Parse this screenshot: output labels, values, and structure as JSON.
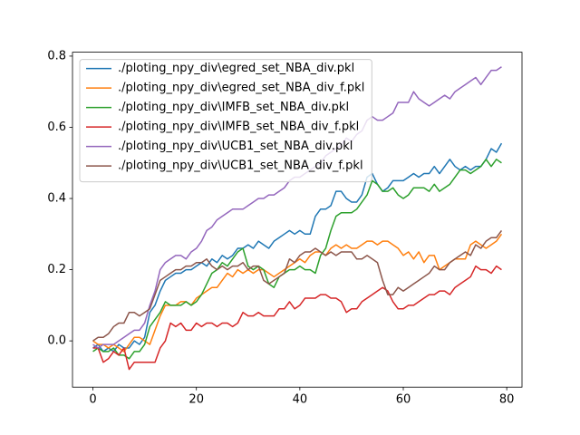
{
  "chart_data": {
    "type": "line",
    "x": [
      0,
      1,
      2,
      3,
      4,
      5,
      6,
      7,
      8,
      9,
      10,
      11,
      12,
      13,
      14,
      15,
      16,
      17,
      18,
      19,
      20,
      21,
      22,
      23,
      24,
      25,
      26,
      27,
      28,
      29,
      30,
      31,
      32,
      33,
      34,
      35,
      36,
      37,
      38,
      39,
      40,
      41,
      42,
      43,
      44,
      45,
      46,
      47,
      48,
      49,
      50,
      51,
      52,
      53,
      54,
      55,
      56,
      57,
      58,
      59,
      60,
      61,
      62,
      63,
      64,
      65,
      66,
      67,
      68,
      69,
      70,
      71,
      72,
      73,
      74,
      75,
      76,
      77,
      78,
      79
    ],
    "series": [
      {
        "name": "./ploting_npy_div\\egred_set_NBA_div.pkl",
        "color": "#1f77b4",
        "values": [
          -0.02,
          -0.01,
          -0.03,
          -0.02,
          -0.03,
          -0.01,
          -0.02,
          -0.02,
          0.0,
          -0.01,
          0.01,
          0.08,
          0.1,
          0.14,
          0.17,
          0.18,
          0.19,
          0.19,
          0.2,
          0.2,
          0.21,
          0.22,
          0.21,
          0.23,
          0.22,
          0.24,
          0.23,
          0.24,
          0.26,
          0.26,
          0.27,
          0.26,
          0.28,
          0.27,
          0.26,
          0.28,
          0.29,
          0.3,
          0.31,
          0.3,
          0.31,
          0.3,
          0.3,
          0.35,
          0.37,
          0.37,
          0.38,
          0.42,
          0.42,
          0.4,
          0.39,
          0.39,
          0.41,
          0.46,
          0.47,
          0.44,
          0.42,
          0.43,
          0.45,
          0.45,
          0.45,
          0.46,
          0.47,
          0.46,
          0.47,
          0.47,
          0.49,
          0.47,
          0.49,
          0.51,
          0.49,
          0.48,
          0.49,
          0.48,
          0.49,
          0.49,
          0.51,
          0.54,
          0.53,
          0.555
        ]
      },
      {
        "name": "./ploting_npy_div\\egred_set_NBA_div_f.pkl",
        "color": "#ff7f0e",
        "values": [
          0.0,
          -0.01,
          -0.01,
          -0.02,
          -0.01,
          -0.02,
          -0.03,
          -0.01,
          0.01,
          0.01,
          0.0,
          -0.01,
          0.03,
          0.07,
          0.1,
          0.1,
          0.1,
          0.11,
          0.11,
          0.1,
          0.12,
          0.13,
          0.14,
          0.15,
          0.15,
          0.17,
          0.19,
          0.18,
          0.2,
          0.19,
          0.2,
          0.19,
          0.2,
          0.2,
          0.19,
          0.18,
          0.19,
          0.2,
          0.21,
          0.22,
          0.23,
          0.22,
          0.24,
          0.25,
          0.25,
          0.24,
          0.26,
          0.27,
          0.26,
          0.27,
          0.26,
          0.26,
          0.27,
          0.28,
          0.28,
          0.27,
          0.28,
          0.28,
          0.27,
          0.26,
          0.24,
          0.25,
          0.23,
          0.25,
          0.22,
          0.24,
          0.24,
          0.2,
          0.21,
          0.22,
          0.23,
          0.23,
          0.23,
          0.27,
          0.28,
          0.27,
          0.26,
          0.27,
          0.28,
          0.3
        ]
      },
      {
        "name": "./ploting_npy_div\\IMFB_set_NBA_div.pkl",
        "color": "#2ca02c",
        "values": [
          -0.03,
          -0.02,
          -0.03,
          -0.03,
          -0.02,
          -0.04,
          -0.04,
          -0.05,
          -0.03,
          -0.03,
          -0.01,
          0.04,
          0.06,
          0.08,
          0.11,
          0.1,
          0.1,
          0.1,
          0.11,
          0.1,
          0.11,
          0.13,
          0.16,
          0.19,
          0.2,
          0.22,
          0.21,
          0.23,
          0.25,
          0.26,
          0.21,
          0.2,
          0.21,
          0.2,
          0.16,
          0.15,
          0.18,
          0.19,
          0.2,
          0.2,
          0.21,
          0.2,
          0.2,
          0.19,
          0.24,
          0.26,
          0.31,
          0.35,
          0.36,
          0.36,
          0.36,
          0.37,
          0.39,
          0.41,
          0.45,
          0.44,
          0.42,
          0.42,
          0.43,
          0.41,
          0.4,
          0.41,
          0.43,
          0.43,
          0.43,
          0.42,
          0.44,
          0.42,
          0.43,
          0.44,
          0.46,
          0.48,
          0.48,
          0.47,
          0.48,
          0.49,
          0.51,
          0.49,
          0.51,
          0.5
        ]
      },
      {
        "name": "./ploting_npy_div\\IMFB_set_NBA_div_f.pkl",
        "color": "#d62728",
        "values": [
          -0.02,
          -0.02,
          -0.06,
          -0.05,
          -0.03,
          -0.04,
          -0.02,
          -0.08,
          -0.06,
          -0.06,
          -0.06,
          -0.06,
          -0.06,
          -0.02,
          0.0,
          0.05,
          0.04,
          0.05,
          0.03,
          0.03,
          0.05,
          0.04,
          0.05,
          0.05,
          0.04,
          0.05,
          0.05,
          0.04,
          0.05,
          0.08,
          0.07,
          0.07,
          0.08,
          0.07,
          0.07,
          0.07,
          0.09,
          0.09,
          0.11,
          0.09,
          0.1,
          0.12,
          0.12,
          0.12,
          0.13,
          0.13,
          0.12,
          0.12,
          0.11,
          0.08,
          0.09,
          0.09,
          0.11,
          0.12,
          0.13,
          0.14,
          0.15,
          0.14,
          0.11,
          0.09,
          0.09,
          0.1,
          0.1,
          0.11,
          0.12,
          0.13,
          0.13,
          0.14,
          0.14,
          0.13,
          0.15,
          0.16,
          0.17,
          0.18,
          0.21,
          0.2,
          0.2,
          0.19,
          0.21,
          0.2
        ]
      },
      {
        "name": "./ploting_npy_div\\UCB1_set_NBA_div.pkl",
        "color": "#9467bd",
        "values": [
          -0.01,
          -0.02,
          -0.01,
          -0.01,
          -0.01,
          0.0,
          0.01,
          0.02,
          0.03,
          0.03,
          0.05,
          0.1,
          0.14,
          0.2,
          0.22,
          0.23,
          0.24,
          0.24,
          0.23,
          0.25,
          0.26,
          0.28,
          0.31,
          0.32,
          0.34,
          0.35,
          0.36,
          0.37,
          0.37,
          0.37,
          0.38,
          0.39,
          0.4,
          0.4,
          0.41,
          0.41,
          0.42,
          0.43,
          0.45,
          0.46,
          0.46,
          0.47,
          0.48,
          0.49,
          0.5,
          0.52,
          0.53,
          0.54,
          0.55,
          0.57,
          0.56,
          0.58,
          0.59,
          0.62,
          0.63,
          0.62,
          0.62,
          0.63,
          0.64,
          0.67,
          0.67,
          0.67,
          0.7,
          0.68,
          0.67,
          0.66,
          0.67,
          0.68,
          0.69,
          0.68,
          0.7,
          0.71,
          0.72,
          0.73,
          0.74,
          0.72,
          0.74,
          0.76,
          0.76,
          0.77
        ]
      },
      {
        "name": "./ploting_npy_div\\UCB1_set_NBA_div_f.pkl",
        "color": "#8c564b",
        "values": [
          0.0,
          0.01,
          0.01,
          0.02,
          0.04,
          0.05,
          0.05,
          0.08,
          0.08,
          0.07,
          0.08,
          0.09,
          0.13,
          0.17,
          0.18,
          0.19,
          0.2,
          0.2,
          0.21,
          0.21,
          0.22,
          0.22,
          0.23,
          0.21,
          0.2,
          0.21,
          0.2,
          0.21,
          0.21,
          0.22,
          0.2,
          0.21,
          0.21,
          0.17,
          0.16,
          0.17,
          0.18,
          0.19,
          0.23,
          0.22,
          0.24,
          0.25,
          0.25,
          0.26,
          0.25,
          0.24,
          0.25,
          0.24,
          0.25,
          0.25,
          0.25,
          0.23,
          0.23,
          0.24,
          0.23,
          0.22,
          0.17,
          0.13,
          0.13,
          0.15,
          0.14,
          0.15,
          0.16,
          0.17,
          0.18,
          0.19,
          0.21,
          0.2,
          0.2,
          0.22,
          0.23,
          0.24,
          0.25,
          0.24,
          0.27,
          0.26,
          0.28,
          0.29,
          0.29,
          0.31
        ]
      }
    ],
    "xlim": [
      -3.95,
      82.95
    ],
    "ylim": [
      -0.13,
      0.811
    ],
    "xticks": [
      0,
      20,
      40,
      60,
      80
    ],
    "yticks": [
      {
        "value": 0,
        "label": "0.0"
      },
      0.2,
      0.4,
      0.6,
      0.8
    ],
    "legend": "upper left",
    "grid": false
  }
}
